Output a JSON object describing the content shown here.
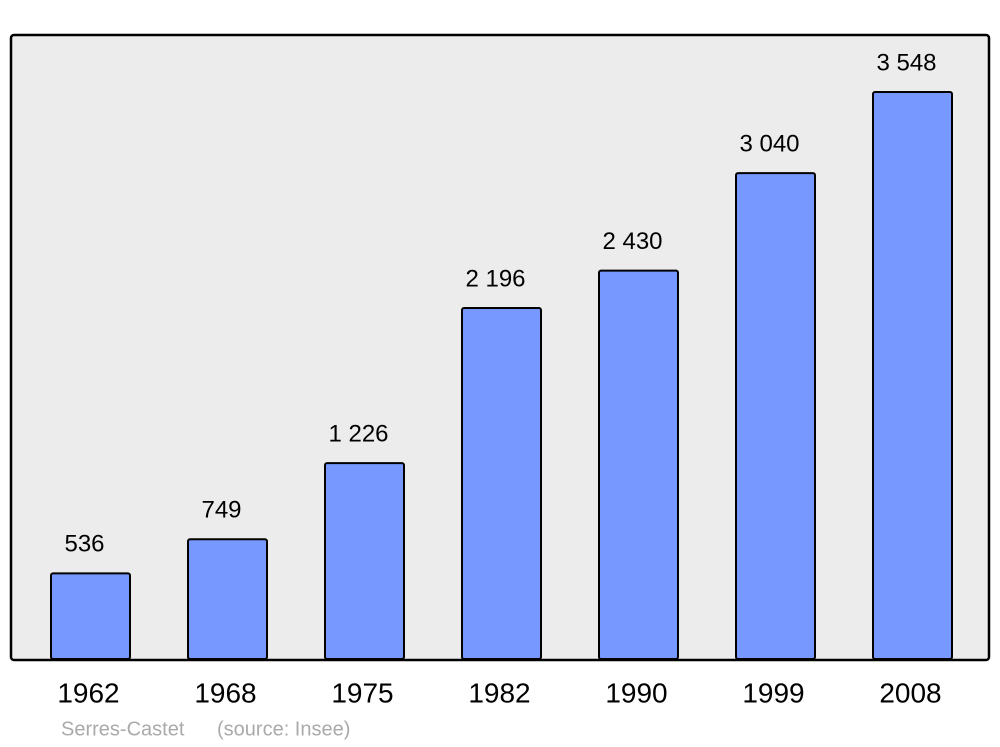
{
  "chart_data": {
    "type": "bar",
    "categories": [
      "1962",
      "1968",
      "1975",
      "1982",
      "1990",
      "1999",
      "2008"
    ],
    "values": [
      536,
      749,
      1226,
      2196,
      2430,
      3040,
      3548
    ],
    "value_labels": [
      "536",
      "749",
      "1 226",
      "2 196",
      "2 430",
      "3 040",
      "3 548"
    ],
    "color": "#7799ff",
    "caption": "Serres-Castet",
    "source": "(source: Insee)"
  }
}
